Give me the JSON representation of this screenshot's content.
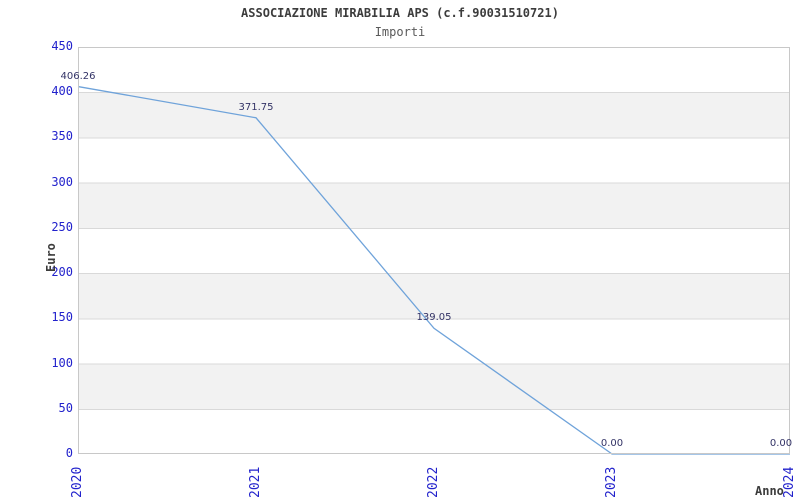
{
  "header": {
    "title": "ASSOCIAZIONE MIRABILIA APS (c.f.90031510721)",
    "subtitle": "Importi"
  },
  "chart_data": {
    "type": "line",
    "x": [
      2020,
      2021,
      2022,
      2023,
      2024
    ],
    "x_labels": [
      "2020",
      "2021",
      "2022",
      "2023",
      "2024"
    ],
    "series": [
      {
        "name": "Importi",
        "values": [
          406.26,
          371.75,
          139.05,
          0.0,
          0.0
        ]
      }
    ],
    "value_labels": [
      "406.26",
      "371.75",
      "139.05",
      "0.00",
      "0.00"
    ],
    "title": "ASSOCIAZIONE MIRABILIA APS (c.f.90031510721)",
    "subtitle": "Importi",
    "xlabel": "Anno",
    "ylabel": "Euro",
    "ylim": [
      0,
      450
    ],
    "ytick_step": 50,
    "yticks": [
      0,
      50,
      100,
      150,
      200,
      250,
      300,
      350,
      400,
      450
    ],
    "grid": true,
    "alternating_bands": true,
    "legend": "none",
    "colors": {
      "line": "#6fa3da",
      "tick_labels": "#2222cc",
      "value_labels": "#333366",
      "band": "#f2f2f2",
      "gridline": "#d9d9d9",
      "border": "#c8c8c8",
      "title": "#3c3c3c"
    }
  }
}
